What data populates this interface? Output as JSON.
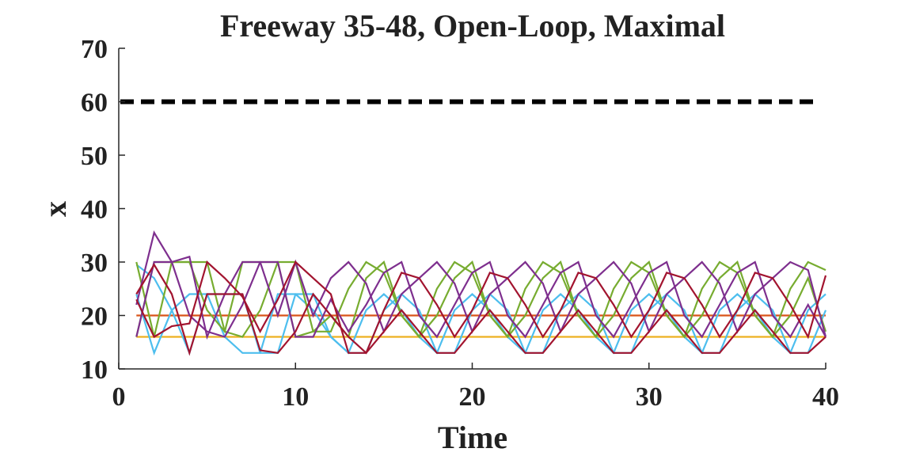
{
  "chart_data": {
    "type": "line",
    "title": "Freeway 35-48, Open-Loop, Maximal",
    "xlabel": "Time",
    "ylabel": "x",
    "xlim": [
      0,
      40
    ],
    "ylim": [
      10,
      70
    ],
    "x_ticks": [
      0,
      10,
      20,
      30,
      40
    ],
    "y_ticks": [
      10,
      20,
      30,
      40,
      50,
      60,
      70
    ],
    "x_tick_labels": [
      "0",
      "10",
      "20",
      "30",
      "40"
    ],
    "y_tick_labels": [
      "10",
      "20",
      "30",
      "40",
      "50",
      "60",
      "70"
    ],
    "grid": false,
    "reference_line": {
      "y": 60,
      "style": "dashed",
      "color": "#000000"
    },
    "series": [
      {
        "color": "#EDB120",
        "x": [
          1,
          40
        ],
        "y": [
          16,
          16
        ]
      },
      {
        "color": "#D95319",
        "x": [
          1,
          40
        ],
        "y": [
          20,
          20
        ]
      },
      {
        "color": "#4DBEEE",
        "x": [
          1,
          2,
          3,
          4,
          5,
          6,
          7,
          8,
          9,
          10,
          11,
          12,
          13,
          14,
          15,
          16,
          17,
          18,
          19,
          20,
          21,
          22,
          23,
          24,
          25,
          26,
          27,
          28,
          29,
          30,
          31,
          32,
          33,
          34,
          35,
          36,
          37,
          38,
          39,
          40
        ],
        "y": [
          29.5,
          27,
          21,
          13,
          24,
          24,
          24,
          13,
          13,
          24,
          24,
          16,
          13,
          13,
          21,
          24,
          21,
          13,
          13,
          21,
          24,
          21,
          13,
          13,
          21,
          24,
          21,
          13,
          13,
          21,
          24,
          21,
          13,
          13,
          21,
          24,
          21,
          13,
          13,
          21
        ]
      },
      {
        "color": "#4DBEEE",
        "x": [
          1,
          2,
          3,
          4,
          5,
          6,
          7,
          8,
          9,
          10,
          11,
          12,
          13,
          14,
          15,
          16,
          17,
          18,
          19,
          20,
          21,
          22,
          23,
          24,
          25,
          26,
          27,
          28,
          29,
          30,
          31,
          32,
          33,
          34,
          35,
          36,
          37,
          38,
          39,
          40
        ],
        "y": [
          24,
          13,
          21,
          24,
          24,
          16,
          13,
          13,
          24,
          24,
          21,
          16,
          13,
          21,
          24,
          21,
          16,
          13,
          21,
          24,
          21,
          16,
          13,
          21,
          24,
          21,
          16,
          13,
          21,
          24,
          21,
          16,
          13,
          21,
          24,
          21,
          16,
          13,
          21,
          24
        ]
      },
      {
        "color": "#77AC30",
        "x": [
          1,
          2,
          3,
          4,
          5,
          6,
          7,
          8,
          9,
          10,
          11,
          12,
          13,
          14,
          15,
          16,
          17,
          18,
          19,
          20,
          21,
          22,
          23,
          24,
          25,
          26,
          27,
          28,
          29,
          30,
          31,
          32,
          33,
          34,
          35,
          36,
          37,
          38,
          39,
          40
        ],
        "y": [
          30,
          16,
          30,
          30,
          30,
          17,
          16,
          21,
          30,
          30,
          17,
          17,
          25,
          30,
          28,
          20,
          16,
          25,
          30,
          28,
          20,
          16,
          25,
          30,
          28,
          20,
          16,
          25,
          30,
          28,
          20,
          16,
          25,
          30,
          28,
          20,
          16,
          25,
          30,
          28.5
        ]
      },
      {
        "color": "#77AC30",
        "x": [
          1,
          2,
          3,
          4,
          5,
          6,
          7,
          8,
          9,
          10,
          11,
          12,
          13,
          14,
          15,
          16,
          17,
          18,
          19,
          20,
          21,
          22,
          23,
          24,
          25,
          26,
          27,
          28,
          29,
          30,
          31,
          32,
          33,
          34,
          35,
          36,
          37,
          38,
          39,
          40
        ],
        "y": [
          16,
          30,
          30,
          30,
          21,
          17,
          30,
          30,
          30,
          16,
          17,
          20,
          16,
          27,
          30,
          20,
          16,
          20,
          27,
          30,
          20,
          16,
          20,
          27,
          30,
          20,
          16,
          20,
          27,
          30,
          20,
          16,
          20,
          27,
          30,
          20,
          16,
          20,
          27,
          17
        ]
      },
      {
        "color": "#7E2F8E",
        "x": [
          1,
          2,
          3,
          4,
          5,
          6,
          7,
          8,
          9,
          10,
          11,
          12,
          13,
          14,
          15,
          16,
          17,
          18,
          19,
          20,
          21,
          22,
          23,
          24,
          25,
          26,
          27,
          28,
          29,
          30,
          31,
          32,
          33,
          34,
          35,
          36,
          37,
          38,
          39,
          40
        ],
        "y": [
          22,
          35.5,
          30,
          31,
          16,
          24,
          30,
          30,
          20,
          30,
          20,
          27,
          30,
          26,
          17,
          24,
          27,
          30,
          26,
          17,
          24,
          27,
          30,
          26,
          17,
          24,
          27,
          30,
          26,
          17,
          24,
          27,
          30,
          26,
          17,
          24,
          27,
          30,
          28.5,
          16
        ]
      },
      {
        "color": "#7E2F8E",
        "x": [
          1,
          2,
          3,
          4,
          5,
          6,
          7,
          8,
          9,
          10,
          11,
          12,
          13,
          14,
          15,
          16,
          17,
          18,
          19,
          20,
          21,
          22,
          23,
          24,
          25,
          26,
          27,
          28,
          29,
          30,
          31,
          32,
          33,
          34,
          35,
          36,
          37,
          38,
          39,
          40
        ],
        "y": [
          16,
          30,
          30,
          20,
          17,
          16,
          22,
          30,
          30,
          16,
          16,
          23,
          17,
          22,
          28,
          30,
          20,
          16,
          22,
          28,
          30,
          20,
          16,
          22,
          28,
          30,
          20,
          16,
          22,
          28,
          30,
          20,
          16,
          22,
          28,
          30,
          20,
          16,
          22,
          16
        ]
      },
      {
        "color": "#A2142F",
        "x": [
          1,
          2,
          3,
          4,
          5,
          6,
          7,
          8,
          9,
          10,
          11,
          12,
          13,
          14,
          15,
          16,
          17,
          18,
          19,
          20,
          21,
          22,
          23,
          24,
          25,
          26,
          27,
          28,
          29,
          30,
          31,
          32,
          33,
          34,
          35,
          36,
          37,
          38,
          39,
          40
        ],
        "y": [
          24,
          29.5,
          24,
          13,
          24,
          24,
          24,
          13.5,
          13,
          17,
          24,
          20,
          16,
          13,
          21,
          28,
          27,
          22,
          16,
          21,
          28,
          27,
          22,
          16,
          21,
          28,
          27,
          22,
          16,
          21,
          28,
          27,
          22,
          16,
          21,
          28,
          27,
          22,
          16,
          27.5
        ]
      },
      {
        "color": "#A2142F",
        "x": [
          1,
          2,
          3,
          4,
          5,
          6,
          7,
          8,
          9,
          10,
          11,
          12,
          13,
          14,
          15,
          16,
          17,
          18,
          19,
          20,
          21,
          22,
          23,
          24,
          25,
          26,
          27,
          28,
          29,
          30,
          31,
          32,
          33,
          34,
          35,
          36,
          37,
          38,
          39,
          40
        ],
        "y": [
          23,
          16,
          18,
          18.5,
          30,
          27,
          23.5,
          17,
          23,
          30,
          27,
          24,
          13,
          13,
          17,
          21,
          17,
          13,
          13,
          17,
          21,
          17,
          13,
          13,
          17,
          21,
          17,
          13,
          13,
          17,
          21,
          17,
          13,
          13,
          17,
          21,
          17,
          13,
          13,
          16
        ]
      }
    ]
  }
}
